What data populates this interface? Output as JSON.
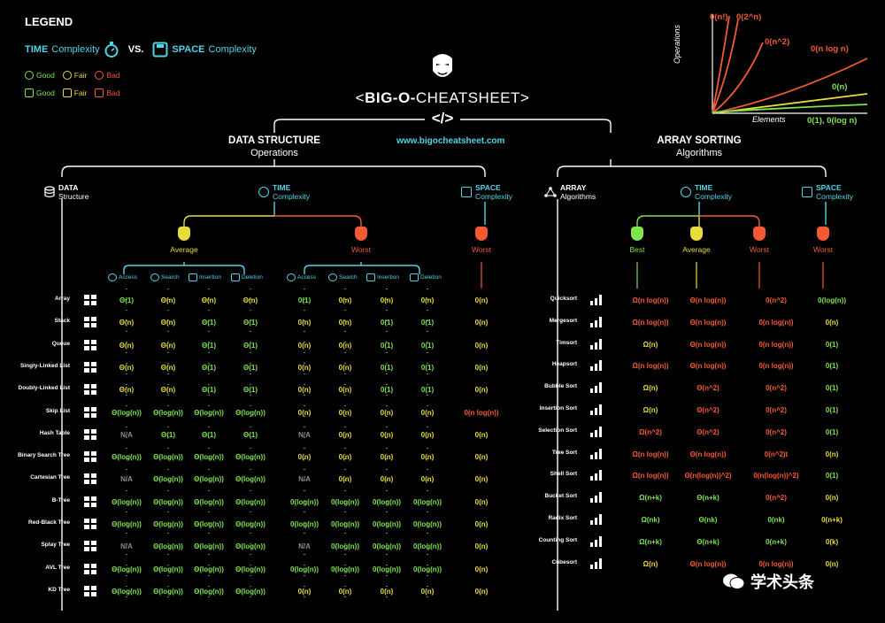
{
  "colors": {
    "good": "#7fe34f",
    "fair": "#e7dc3c",
    "bad": "#f35a34",
    "accent": "#4fd4e6",
    "na": "#8a8a8a"
  },
  "legend": {
    "title": "LEGEND",
    "time_word": "TIME",
    "time_rest": "Complexity",
    "vs": "VS.",
    "space_word": "SPACE",
    "space_rest": "Complexity",
    "good": "Good",
    "fair": "Fair",
    "bad": "Bad"
  },
  "header": {
    "title_prefix": "<",
    "title_bold": "BIG-O-",
    "title_rest": "CHEATSHEET",
    "title_suffix": ">",
    "slash": "</>",
    "url": "www.bigocheatsheet.com"
  },
  "chart": {
    "ylabel": "Operations",
    "xlabel": "Elements",
    "curves": [
      "0(n!)",
      "0(2^n)",
      "0(n^2)",
      "0(n log n)",
      "0(n)",
      "0(1), 0(log n)"
    ]
  },
  "ds": {
    "heading": "DATA STRUCTURE",
    "sub": "Operations",
    "col_data": "DATA",
    "col_data_sub": "Structure",
    "col_time": "TIME",
    "col_time_sub": "Complexity",
    "col_space": "SPACE",
    "col_space_sub": "Complexity",
    "average": "Average",
    "worst": "Worst",
    "worst_space": "Worst",
    "ops": [
      "Access",
      "Search",
      "Insertion",
      "Deletion"
    ],
    "rows": [
      {
        "name": "Array",
        "cells": [
          [
            "Θ(1)",
            "g"
          ],
          [
            "Θ(n)",
            "y"
          ],
          [
            "Θ(n)",
            "y"
          ],
          [
            "Θ(n)",
            "y"
          ],
          [
            "0(1)",
            "g"
          ],
          [
            "0(n)",
            "y"
          ],
          [
            "0(n)",
            "y"
          ],
          [
            "0(n)",
            "y"
          ],
          [
            "0(n)",
            "y"
          ]
        ]
      },
      {
        "name": "Stack",
        "cells": [
          [
            "Θ(n)",
            "y"
          ],
          [
            "Θ(n)",
            "y"
          ],
          [
            "Θ(1)",
            "g"
          ],
          [
            "Θ(1)",
            "g"
          ],
          [
            "0(n)",
            "y"
          ],
          [
            "0(n)",
            "y"
          ],
          [
            "0(1)",
            "g"
          ],
          [
            "0(1)",
            "g"
          ],
          [
            "0(n)",
            "y"
          ]
        ]
      },
      {
        "name": "Queue",
        "cells": [
          [
            "Θ(n)",
            "y"
          ],
          [
            "Θ(n)",
            "y"
          ],
          [
            "Θ(1)",
            "g"
          ],
          [
            "Θ(1)",
            "g"
          ],
          [
            "0(n)",
            "y"
          ],
          [
            "0(n)",
            "y"
          ],
          [
            "0(1)",
            "g"
          ],
          [
            "0(1)",
            "g"
          ],
          [
            "0(n)",
            "y"
          ]
        ]
      },
      {
        "name": "Singly-Linked List",
        "cells": [
          [
            "Θ(n)",
            "y"
          ],
          [
            "Θ(n)",
            "y"
          ],
          [
            "Θ(1)",
            "g"
          ],
          [
            "Θ(1)",
            "g"
          ],
          [
            "0(n)",
            "y"
          ],
          [
            "0(n)",
            "y"
          ],
          [
            "0(1)",
            "g"
          ],
          [
            "0(1)",
            "g"
          ],
          [
            "0(n)",
            "y"
          ]
        ]
      },
      {
        "name": "Doubly-Linked List",
        "cells": [
          [
            "Θ(n)",
            "y"
          ],
          [
            "Θ(n)",
            "y"
          ],
          [
            "Θ(1)",
            "g"
          ],
          [
            "Θ(1)",
            "g"
          ],
          [
            "0(n)",
            "y"
          ],
          [
            "0(n)",
            "y"
          ],
          [
            "0(1)",
            "g"
          ],
          [
            "0(1)",
            "g"
          ],
          [
            "0(n)",
            "y"
          ]
        ]
      },
      {
        "name": "Skip List",
        "cells": [
          [
            "Θ(log(n))",
            "g"
          ],
          [
            "Θ(log(n))",
            "g"
          ],
          [
            "Θ(log(n))",
            "g"
          ],
          [
            "Θ(log(n))",
            "g"
          ],
          [
            "0(n)",
            "y"
          ],
          [
            "0(n)",
            "y"
          ],
          [
            "0(n)",
            "y"
          ],
          [
            "0(n)",
            "y"
          ],
          [
            "0(n log(n))",
            "r"
          ]
        ]
      },
      {
        "name": "Hash Table",
        "cells": [
          [
            "N/A",
            "n"
          ],
          [
            "Θ(1)",
            "g"
          ],
          [
            "Θ(1)",
            "g"
          ],
          [
            "Θ(1)",
            "g"
          ],
          [
            "N/A",
            "n"
          ],
          [
            "0(n)",
            "y"
          ],
          [
            "0(n)",
            "y"
          ],
          [
            "0(n)",
            "y"
          ],
          [
            "0(n)",
            "y"
          ]
        ]
      },
      {
        "name": "Binary Search Tree",
        "cells": [
          [
            "Θ(log(n))",
            "g"
          ],
          [
            "Θ(log(n))",
            "g"
          ],
          [
            "Θ(log(n))",
            "g"
          ],
          [
            "Θ(log(n))",
            "g"
          ],
          [
            "0(n)",
            "y"
          ],
          [
            "0(n)",
            "y"
          ],
          [
            "0(n)",
            "y"
          ],
          [
            "0(n)",
            "y"
          ],
          [
            "0(n)",
            "y"
          ]
        ]
      },
      {
        "name": "Cartesian Tree",
        "cells": [
          [
            "N/A",
            "n"
          ],
          [
            "Θ(log(n))",
            "g"
          ],
          [
            "Θ(log(n))",
            "g"
          ],
          [
            "Θ(log(n))",
            "g"
          ],
          [
            "N/A",
            "n"
          ],
          [
            "0(n)",
            "y"
          ],
          [
            "0(n)",
            "y"
          ],
          [
            "0(n)",
            "y"
          ],
          [
            "0(n)",
            "y"
          ]
        ]
      },
      {
        "name": "B-Tree",
        "cells": [
          [
            "Θ(log(n))",
            "g"
          ],
          [
            "Θ(log(n))",
            "g"
          ],
          [
            "Θ(log(n))",
            "g"
          ],
          [
            "Θ(log(n))",
            "g"
          ],
          [
            "0(log(n))",
            "g"
          ],
          [
            "0(log(n))",
            "g"
          ],
          [
            "0(log(n))",
            "g"
          ],
          [
            "0(log(n))",
            "g"
          ],
          [
            "0(n)",
            "y"
          ]
        ]
      },
      {
        "name": "Red-Black Tree",
        "cells": [
          [
            "Θ(log(n))",
            "g"
          ],
          [
            "Θ(log(n))",
            "g"
          ],
          [
            "Θ(log(n))",
            "g"
          ],
          [
            "Θ(log(n))",
            "g"
          ],
          [
            "0(log(n))",
            "g"
          ],
          [
            "0(log(n))",
            "g"
          ],
          [
            "0(log(n))",
            "g"
          ],
          [
            "0(log(n))",
            "g"
          ],
          [
            "0(n)",
            "y"
          ]
        ]
      },
      {
        "name": "Splay Tree",
        "cells": [
          [
            "N/A",
            "n"
          ],
          [
            "Θ(log(n))",
            "g"
          ],
          [
            "Θ(log(n))",
            "g"
          ],
          [
            "Θ(log(n))",
            "g"
          ],
          [
            "N/A",
            "n"
          ],
          [
            "0(log(n))",
            "g"
          ],
          [
            "0(log(n))",
            "g"
          ],
          [
            "0(log(n))",
            "g"
          ],
          [
            "0(n)",
            "y"
          ]
        ]
      },
      {
        "name": "AVL Tree",
        "cells": [
          [
            "Θ(log(n))",
            "g"
          ],
          [
            "Θ(log(n))",
            "g"
          ],
          [
            "Θ(log(n))",
            "g"
          ],
          [
            "Θ(log(n))",
            "g"
          ],
          [
            "0(log(n))",
            "g"
          ],
          [
            "0(log(n))",
            "g"
          ],
          [
            "0(log(n))",
            "g"
          ],
          [
            "0(log(n))",
            "g"
          ],
          [
            "0(n)",
            "y"
          ]
        ]
      },
      {
        "name": "KD Tree",
        "cells": [
          [
            "Θ(log(n))",
            "g"
          ],
          [
            "Θ(log(n))",
            "g"
          ],
          [
            "Θ(log(n))",
            "g"
          ],
          [
            "Θ(log(n))",
            "g"
          ],
          [
            "0(n)",
            "y"
          ],
          [
            "0(n)",
            "y"
          ],
          [
            "0(n)",
            "y"
          ],
          [
            "0(n)",
            "y"
          ],
          [
            "0(n)",
            "y"
          ]
        ]
      }
    ]
  },
  "sort": {
    "heading": "ARRAY SORTING",
    "sub": "Algorithms",
    "col_array": "ARRAY",
    "col_array_sub": "Algorithms",
    "col_time": "TIME",
    "col_time_sub": "Complexity",
    "col_space": "SPACE",
    "col_space_sub": "Complexity",
    "best": "Best",
    "average": "Average",
    "worst": "Worst",
    "worst_space": "Worst",
    "rows": [
      {
        "name": "Quicksort",
        "cells": [
          [
            "Ω(n log(n))",
            "r"
          ],
          [
            "Θ(n log(n))",
            "r"
          ],
          [
            "0(n^2)",
            "r"
          ],
          [
            "0(log(n))",
            "g"
          ]
        ]
      },
      {
        "name": "Mergesort",
        "cells": [
          [
            "Ω(n log(n))",
            "r"
          ],
          [
            "Θ(n log(n))",
            "r"
          ],
          [
            "0(n log(n))",
            "r"
          ],
          [
            "0(n)",
            "y"
          ]
        ]
      },
      {
        "name": "Timsort",
        "cells": [
          [
            "Ω(n)",
            "y"
          ],
          [
            "Θ(n log(n))",
            "r"
          ],
          [
            "0(n log(n))",
            "r"
          ],
          [
            "0(1)",
            "g"
          ]
        ]
      },
      {
        "name": "Heapsort",
        "cells": [
          [
            "Ω(n log(n))",
            "r"
          ],
          [
            "Θ(n log(n))",
            "r"
          ],
          [
            "0(n log(n))",
            "r"
          ],
          [
            "0(1)",
            "g"
          ]
        ]
      },
      {
        "name": "Bubble Sort",
        "cells": [
          [
            "Ω(n)",
            "y"
          ],
          [
            "Θ(n^2)",
            "r"
          ],
          [
            "0(n^2)",
            "r"
          ],
          [
            "0(1)",
            "g"
          ]
        ]
      },
      {
        "name": "Insertion Sort",
        "cells": [
          [
            "Ω(n)",
            "y"
          ],
          [
            "Θ(n^2)",
            "r"
          ],
          [
            "0(n^2)",
            "r"
          ],
          [
            "0(1)",
            "g"
          ]
        ]
      },
      {
        "name": "Selection Sort",
        "cells": [
          [
            "Ω(n^2)",
            "r"
          ],
          [
            "Θ(n^2)",
            "r"
          ],
          [
            "0(n^2)",
            "r"
          ],
          [
            "0(1)",
            "g"
          ]
        ]
      },
      {
        "name": "Tree Sort",
        "cells": [
          [
            "Ω(n log(n))",
            "r"
          ],
          [
            "Θ(n log(n))",
            "r"
          ],
          [
            "0(n^2)t",
            "r"
          ],
          [
            "0(n)",
            "y"
          ]
        ]
      },
      {
        "name": "Shell Sort",
        "cells": [
          [
            "Ω(n log(n))",
            "r"
          ],
          [
            "Θ(n(log(n))^2)",
            "r"
          ],
          [
            "0(n(log(n))^2)",
            "r"
          ],
          [
            "0(1)",
            "g"
          ]
        ]
      },
      {
        "name": "Bucket Sort",
        "cells": [
          [
            "Ω(n+k)",
            "g"
          ],
          [
            "Θ(n+k)",
            "g"
          ],
          [
            "0(n^2)",
            "r"
          ],
          [
            "0(n)",
            "y"
          ]
        ]
      },
      {
        "name": "Radix Sort",
        "cells": [
          [
            "Ω(nk)",
            "g"
          ],
          [
            "Θ(nk)",
            "g"
          ],
          [
            "0(nk)",
            "g"
          ],
          [
            "0(n+k)",
            "y"
          ]
        ]
      },
      {
        "name": "Counting Sort",
        "cells": [
          [
            "Ω(n+k)",
            "g"
          ],
          [
            "Θ(n+k)",
            "g"
          ],
          [
            "0(n+k)",
            "g"
          ],
          [
            "0(k)",
            "y"
          ]
        ]
      },
      {
        "name": "Cubesort",
        "cells": [
          [
            "Ω(n)",
            "y"
          ],
          [
            "Θ(n log(n))",
            "r"
          ],
          [
            "0(n log(n))",
            "r"
          ],
          [
            "0(n)",
            "y"
          ]
        ]
      }
    ]
  },
  "watermark": "学术头条"
}
